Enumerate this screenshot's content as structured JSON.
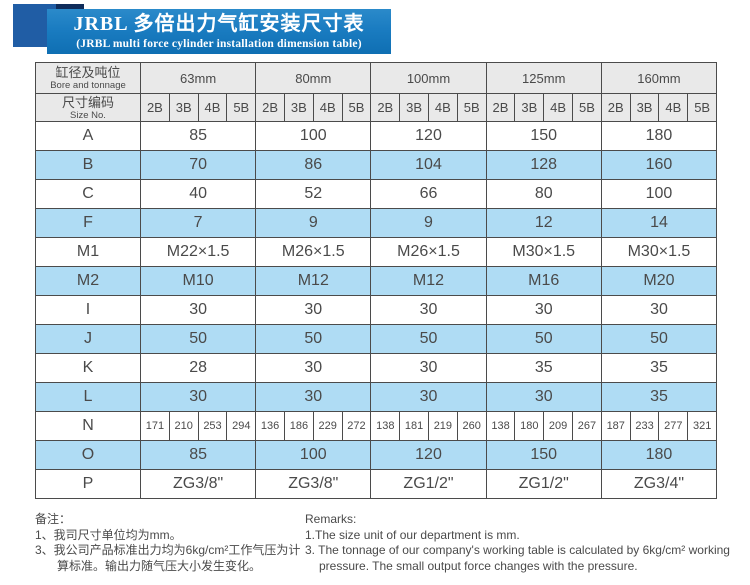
{
  "banner": {
    "title_zh": "JRBL 多倍出力气缸安装尺寸表",
    "title_en": "(JRBL multi force cylinder installation dimension table)"
  },
  "table": {
    "corner": {
      "row1_zh": "缸径及吨位",
      "row1_en": "Bore and tonnage",
      "row2_zh": "尺寸编码",
      "row2_en": "Size No."
    },
    "bores": [
      "63mm",
      "80mm",
      "100mm",
      "125mm",
      "160mm"
    ],
    "size_codes": [
      "2B",
      "3B",
      "4B",
      "5B"
    ],
    "rows": [
      {
        "label": "A",
        "type": "span",
        "values": [
          "85",
          "100",
          "120",
          "150",
          "180"
        ]
      },
      {
        "label": "B",
        "type": "span",
        "values": [
          "70",
          "86",
          "104",
          "128",
          "160"
        ]
      },
      {
        "label": "C",
        "type": "span",
        "values": [
          "40",
          "52",
          "66",
          "80",
          "100"
        ]
      },
      {
        "label": "F",
        "type": "span",
        "values": [
          "7",
          "9",
          "9",
          "12",
          "14"
        ]
      },
      {
        "label": "M1",
        "type": "span",
        "values": [
          "M22×1.5",
          "M26×1.5",
          "M26×1.5",
          "M30×1.5",
          "M30×1.5"
        ]
      },
      {
        "label": "M2",
        "type": "span",
        "values": [
          "M10",
          "M12",
          "M12",
          "M16",
          "M20"
        ]
      },
      {
        "label": "I",
        "type": "span",
        "values": [
          "30",
          "30",
          "30",
          "30",
          "30"
        ]
      },
      {
        "label": "J",
        "type": "span",
        "values": [
          "50",
          "50",
          "50",
          "50",
          "50"
        ]
      },
      {
        "label": "K",
        "type": "span",
        "values": [
          "28",
          "30",
          "30",
          "35",
          "35"
        ]
      },
      {
        "label": "L",
        "type": "span",
        "values": [
          "30",
          "30",
          "30",
          "30",
          "35"
        ]
      },
      {
        "label": "N",
        "type": "sub",
        "values": [
          [
            "171",
            "210",
            "253",
            "294"
          ],
          [
            "136",
            "186",
            "229",
            "272"
          ],
          [
            "138",
            "181",
            "219",
            "260"
          ],
          [
            "138",
            "180",
            "209",
            "267"
          ],
          [
            "187",
            "233",
            "277",
            "321"
          ]
        ]
      },
      {
        "label": "O",
        "type": "span",
        "values": [
          "85",
          "100",
          "120",
          "150",
          "180"
        ]
      },
      {
        "label": "P",
        "type": "span",
        "values": [
          "ZG3/8\"",
          "ZG3/8\"",
          "ZG1/2\"",
          "ZG1/2\"",
          "ZG3/4\""
        ]
      }
    ]
  },
  "remarks_zh": {
    "heading": "备注：",
    "items": [
      "1、我司尺寸单位均为mm。",
      "3、我公司产品标准出力均为6kg/cm²工作气压为计算标准。输出力随气压大小发生变化。"
    ]
  },
  "remarks_en": {
    "heading": "Remarks:",
    "items": [
      "1.The size unit of our department is mm.",
      "3. The tonnage of our company's working table is calculated by 6kg/cm² working pressure. The small output force changes with the pressure."
    ]
  },
  "colors": {
    "banner_blue": "#1a7cc1",
    "banner_square_blue": "#205da5",
    "banner_shadow_navy": "#0f2c5a",
    "header_gray": "#e9e9e9",
    "row_highlight_blue": "#afdcf4",
    "border_gray": "#4b4b4b",
    "text_gray": "#4a4a4a"
  }
}
